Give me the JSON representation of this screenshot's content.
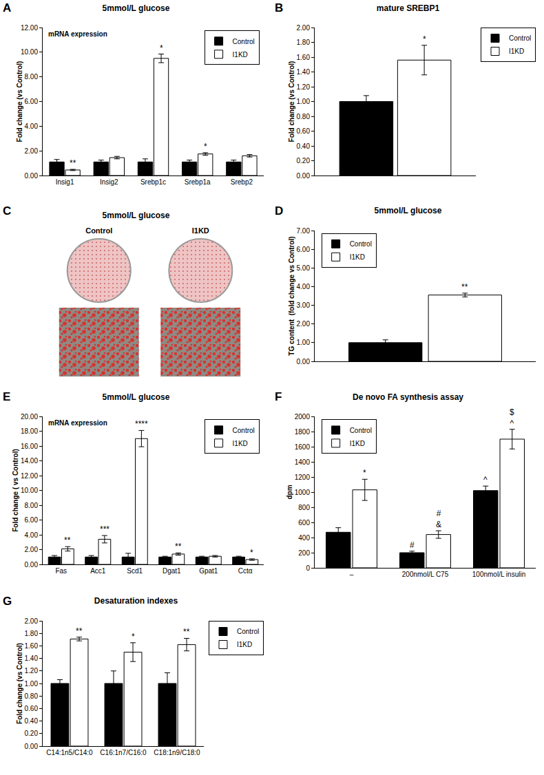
{
  "chart_data": [
    {
      "panel": "A",
      "type": "bar",
      "title": "5mmol/L glucose",
      "subtitle": "mRNA expression",
      "y_label": "Fold change (vs Control)",
      "categories": [
        "Insig1",
        "Insig2",
        "Srebp1c",
        "Srebp1a",
        "Srebp2"
      ],
      "series": [
        {
          "name": "Control",
          "color": "#000000",
          "values": [
            1.1,
            1.1,
            1.1,
            1.1,
            1.1
          ],
          "errors": [
            0.2,
            0.15,
            0.25,
            0.15,
            0.15
          ],
          "marks": [
            null,
            null,
            null,
            null,
            null
          ]
        },
        {
          "name": "I1KD",
          "color": "#ffffff",
          "values": [
            0.45,
            1.45,
            9.5,
            1.75,
            1.6
          ],
          "errors": [
            0.05,
            0.1,
            0.35,
            0.1,
            0.1
          ],
          "marks": [
            "**",
            null,
            "*",
            "*",
            null
          ]
        }
      ],
      "ylim": [
        0,
        12
      ],
      "yticks": [
        {
          "value": 0,
          "label": "0.00"
        },
        {
          "value": 2,
          "label": "2.00"
        },
        {
          "value": 4,
          "label": "4.00"
        },
        {
          "value": 6,
          "label": "6.00"
        },
        {
          "value": 8,
          "label": "8.00"
        },
        {
          "value": 10,
          "label": "10.00"
        },
        {
          "value": 12,
          "label": "12.00"
        }
      ],
      "legend": "upper right"
    },
    {
      "panel": "B",
      "type": "bar",
      "title": "mature SREBP1",
      "y_label": "Fold change (vs Control)",
      "categories": [
        null
      ],
      "series": [
        {
          "name": "Control",
          "color": "#000000",
          "values": [
            1.0
          ],
          "errors": [
            0.08
          ],
          "marks": [
            null
          ]
        },
        {
          "name": "I1KD",
          "color": "#ffffff",
          "values": [
            1.56
          ],
          "errors": [
            0.2
          ],
          "marks": [
            "*"
          ]
        }
      ],
      "ylim": [
        0,
        2
      ],
      "yticks": [
        {
          "value": 0,
          "label": "0.00"
        },
        {
          "value": 0.2,
          "label": "0.20"
        },
        {
          "value": 0.4,
          "label": "0.40"
        },
        {
          "value": 0.6,
          "label": "0.60"
        },
        {
          "value": 0.8,
          "label": "0.80"
        },
        {
          "value": 1,
          "label": "1.00"
        },
        {
          "value": 1.2,
          "label": "1.20"
        },
        {
          "value": 1.4,
          "label": "1.40"
        },
        {
          "value": 1.6,
          "label": "1.60"
        },
        {
          "value": 1.8,
          "label": "1.80"
        },
        {
          "value": 2,
          "label": "2.00"
        }
      ],
      "legend": "right"
    },
    {
      "panel": "C",
      "type": "image",
      "title": "5mmol/L glucose",
      "categories": [
        "Control",
        "I1KD"
      ]
    },
    {
      "panel": "D",
      "type": "bar",
      "title": "5mmol/L glucose",
      "y_label": "TG content  (fold change vs Control)",
      "categories": [
        null
      ],
      "series": [
        {
          "name": "Control",
          "color": "#000000",
          "values": [
            1.0
          ],
          "errors": [
            0.15
          ],
          "marks": [
            null
          ]
        },
        {
          "name": "I1KD",
          "color": "#ffffff",
          "values": [
            3.55
          ],
          "errors": [
            0.1
          ],
          "marks": [
            "**"
          ]
        }
      ],
      "ylim": [
        0,
        7
      ],
      "yticks": [
        {
          "value": 0,
          "label": "0.00"
        },
        {
          "value": 1,
          "label": "1.00"
        },
        {
          "value": 2,
          "label": "2.00"
        },
        {
          "value": 3,
          "label": "3.00"
        },
        {
          "value": 4,
          "label": "4.00"
        },
        {
          "value": 5,
          "label": "5.00"
        },
        {
          "value": 6,
          "label": "6.00"
        },
        {
          "value": 7,
          "label": "7.00"
        }
      ],
      "legend": "upper left"
    },
    {
      "panel": "E",
      "type": "bar",
      "title": "5mmol/L glucose",
      "subtitle": "mRNA expression",
      "y_label": "Fold change ( vs Control)",
      "categories": [
        "Fas",
        "Acc1",
        "Scd1",
        "Dgat1",
        "Gpat1",
        "Cctα"
      ],
      "series": [
        {
          "name": "Control",
          "color": "#000000",
          "values": [
            1.0,
            1.0,
            1.0,
            1.0,
            1.0,
            1.0
          ],
          "errors": [
            0.2,
            0.2,
            0.5,
            0.1,
            0.1,
            0.1
          ],
          "marks": [
            null,
            null,
            null,
            null,
            null,
            null
          ]
        },
        {
          "name": "I1KD",
          "color": "#ffffff",
          "values": [
            2.1,
            3.4,
            17.0,
            1.4,
            1.1,
            0.65
          ],
          "errors": [
            0.3,
            0.5,
            1.1,
            0.15,
            0.1,
            0.1
          ],
          "marks": [
            "**",
            "***",
            "****",
            "**",
            null,
            "*"
          ]
        }
      ],
      "ylim": [
        0,
        20
      ],
      "yticks": [
        {
          "value": 0,
          "label": "0.00"
        },
        {
          "value": 2,
          "label": "2.00"
        },
        {
          "value": 4,
          "label": "4.00"
        },
        {
          "value": 6,
          "label": "6.00"
        },
        {
          "value": 8,
          "label": "8.00"
        },
        {
          "value": 10,
          "label": "10.00"
        },
        {
          "value": 12,
          "label": "12.00"
        },
        {
          "value": 14,
          "label": "14.00"
        },
        {
          "value": 16,
          "label": "16.00"
        },
        {
          "value": 18,
          "label": "18.00"
        },
        {
          "value": 20,
          "label": "20.00"
        }
      ],
      "legend": "upper right"
    },
    {
      "panel": "F",
      "type": "bar",
      "title": "De novo FA synthesis assay",
      "y_label": "dpm",
      "categories": [
        "–",
        "200nmol/L C75",
        "100nmol/L insulin"
      ],
      "series": [
        {
          "name": "Control",
          "color": "#000000",
          "values": [
            470,
            200,
            1020
          ],
          "errors": [
            60,
            20,
            60
          ],
          "marks": [
            null,
            [
              "#"
            ],
            [
              "^"
            ]
          ]
        },
        {
          "name": "I1KD",
          "color": "#ffffff",
          "values": [
            1030,
            440,
            1700
          ],
          "errors": [
            140,
            50,
            130
          ],
          "marks": [
            [
              "*"
            ],
            [
              "#",
              "&"
            ],
            [
              "$",
              "^"
            ]
          ]
        }
      ],
      "ylim": [
        0,
        2000
      ],
      "yticks": [
        0,
        200,
        400,
        600,
        800,
        1000,
        1200,
        1400,
        1600,
        1800,
        2000
      ],
      "legend": "upper left"
    },
    {
      "panel": "G",
      "type": "bar",
      "title": "Desaturation indexes",
      "y_label": "Fold change (vs Control)",
      "categories": [
        "C14:1n5/C14:0",
        "C16:1n7/C16:0",
        "C18:1n9/C18:0"
      ],
      "series": [
        {
          "name": "Control",
          "color": "#000000",
          "values": [
            1.0,
            1.0,
            1.0
          ],
          "errors": [
            0.06,
            0.2,
            0.17
          ],
          "marks": [
            null,
            null,
            null
          ]
        },
        {
          "name": "I1KD",
          "color": "#ffffff",
          "values": [
            1.71,
            1.5,
            1.62
          ],
          "errors": [
            0.03,
            0.15,
            0.1
          ],
          "marks": [
            "**",
            "*",
            "**"
          ]
        }
      ],
      "ylim": [
        0,
        2
      ],
      "yticks": [
        {
          "value": 0,
          "label": "0.00"
        },
        {
          "value": 0.2,
          "label": "0.20"
        },
        {
          "value": 0.4,
          "label": "0.40"
        },
        {
          "value": 0.6,
          "label": "0.60"
        },
        {
          "value": 0.8,
          "label": "0.80"
        },
        {
          "value": 1,
          "label": "1.00"
        },
        {
          "value": 1.2,
          "label": "1.20"
        },
        {
          "value": 1.4,
          "label": "1.40"
        },
        {
          "value": 1.6,
          "label": "1.60"
        },
        {
          "value": 1.8,
          "label": "1.80"
        },
        {
          "value": 2,
          "label": "2.00"
        }
      ],
      "legend": "right"
    }
  ]
}
